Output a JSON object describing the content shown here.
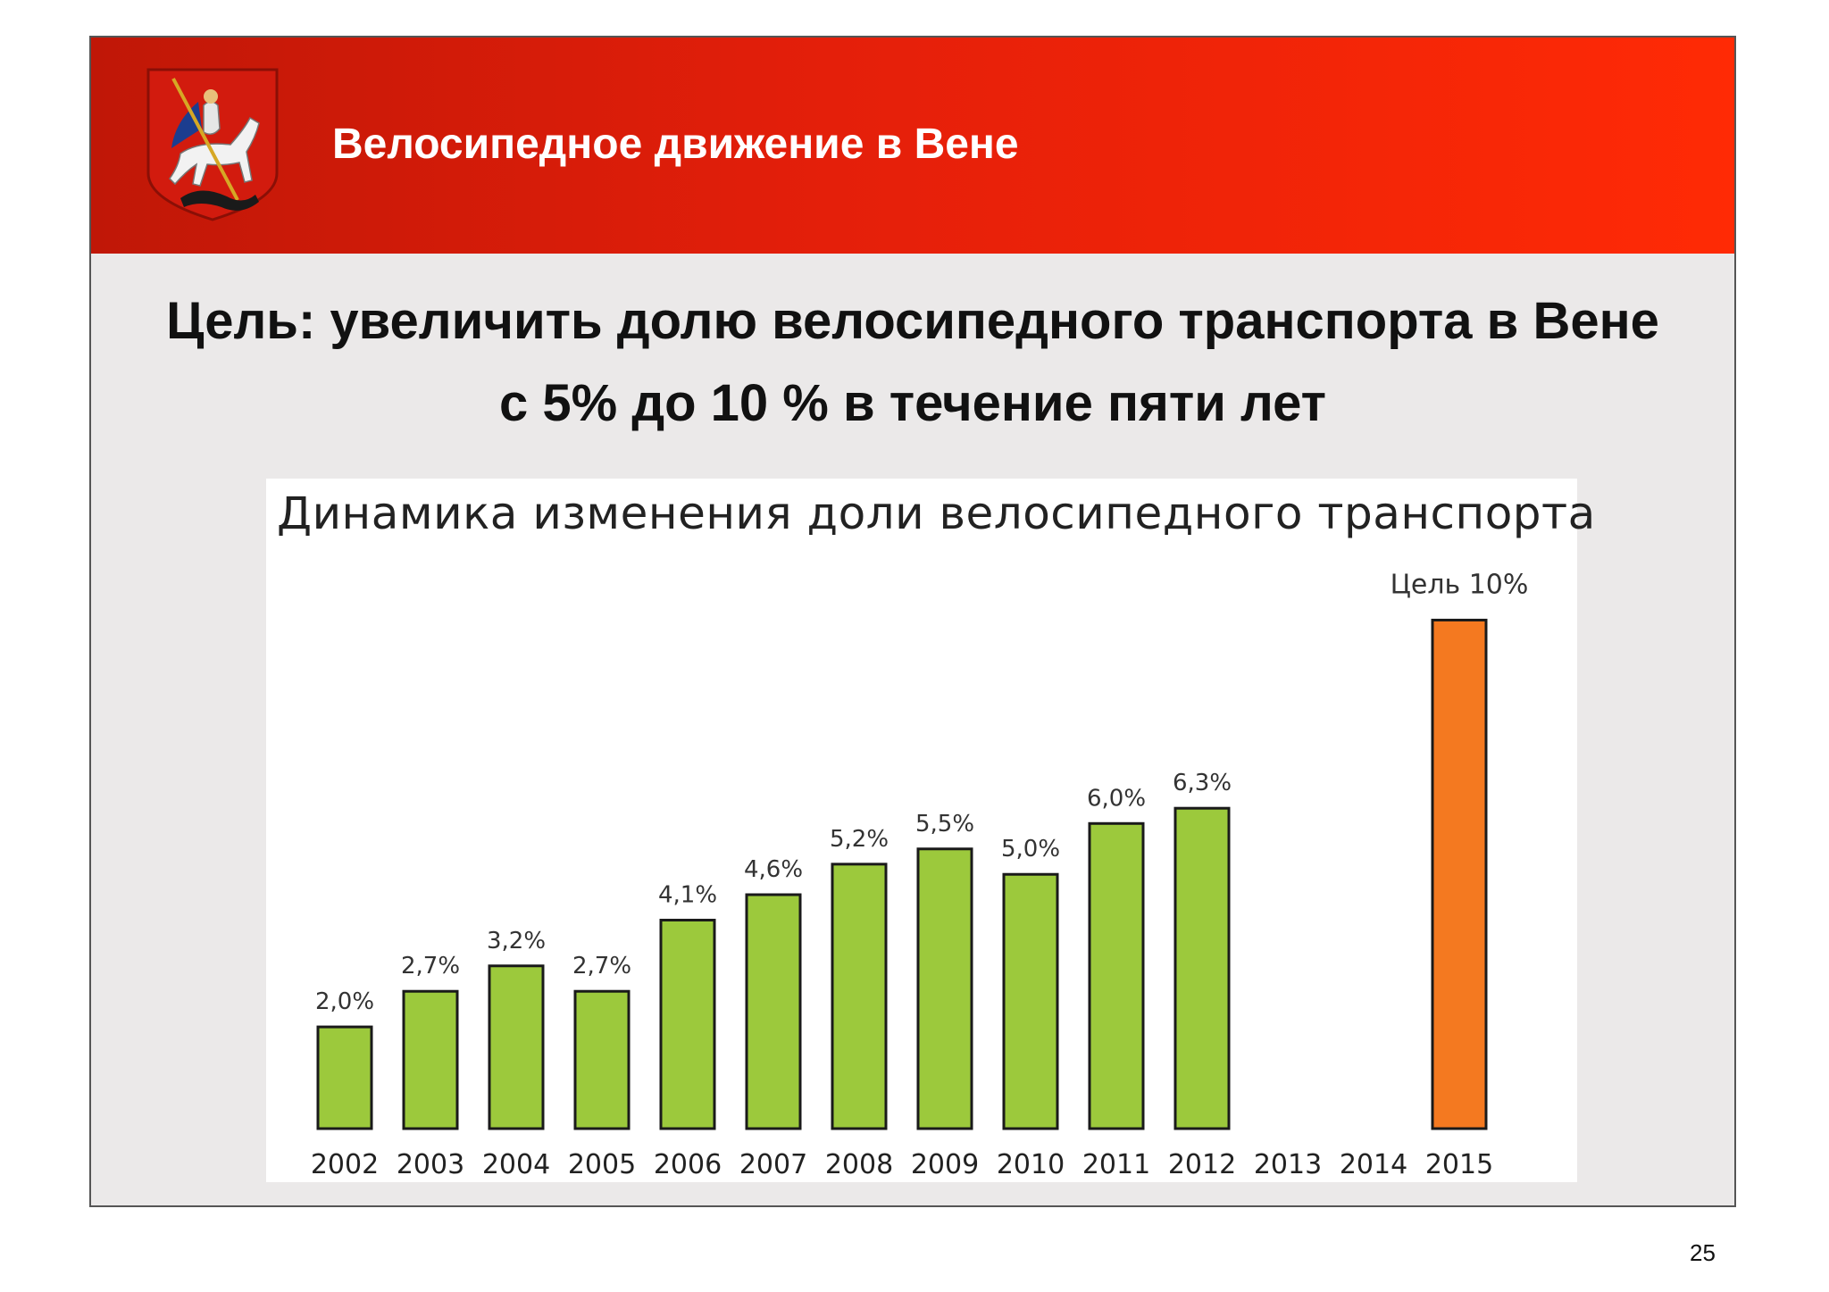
{
  "header": {
    "title": "Велосипедное движение в Вене"
  },
  "emblem": {
    "icon": "moscow-coat-of-arms-icon",
    "colors": {
      "shield": "#d21b0e",
      "rider": "#f2f2f2",
      "cloak": "#1c3d8f"
    }
  },
  "goal": {
    "line1": "Цель: увеличить долю велосипедного транспорта в Вене",
    "line2": "с 5% до 10 % в течение пяти лет"
  },
  "chart_data": {
    "type": "bar",
    "title": "Динамика изменения доли велосипедного транспорта",
    "xlabel": "",
    "ylabel": "",
    "ylim": [
      0,
      10.5
    ],
    "grid": false,
    "categories": [
      "2002",
      "2003",
      "2004",
      "2005",
      "2006",
      "2007",
      "2008",
      "2009",
      "2010",
      "2011",
      "2012",
      "2013",
      "2014",
      "2015"
    ],
    "values": [
      2.0,
      2.7,
      3.2,
      2.7,
      4.1,
      4.6,
      5.2,
      5.5,
      5.0,
      6.0,
      6.3,
      null,
      null,
      10.0
    ],
    "labels": [
      "2,0%",
      "2,7%",
      "3,2%",
      "2,7%",
      "4,1%",
      "4,6%",
      "5,2%",
      "5,5%",
      "5,0%",
      "6,0%",
      "6,3%",
      "",
      "",
      "Цель 10%"
    ],
    "colors": {
      "actual": "#9cc93c",
      "target": "#f47920",
      "outline": "#1a1a1a"
    }
  },
  "footer": {
    "page_number": "25"
  }
}
